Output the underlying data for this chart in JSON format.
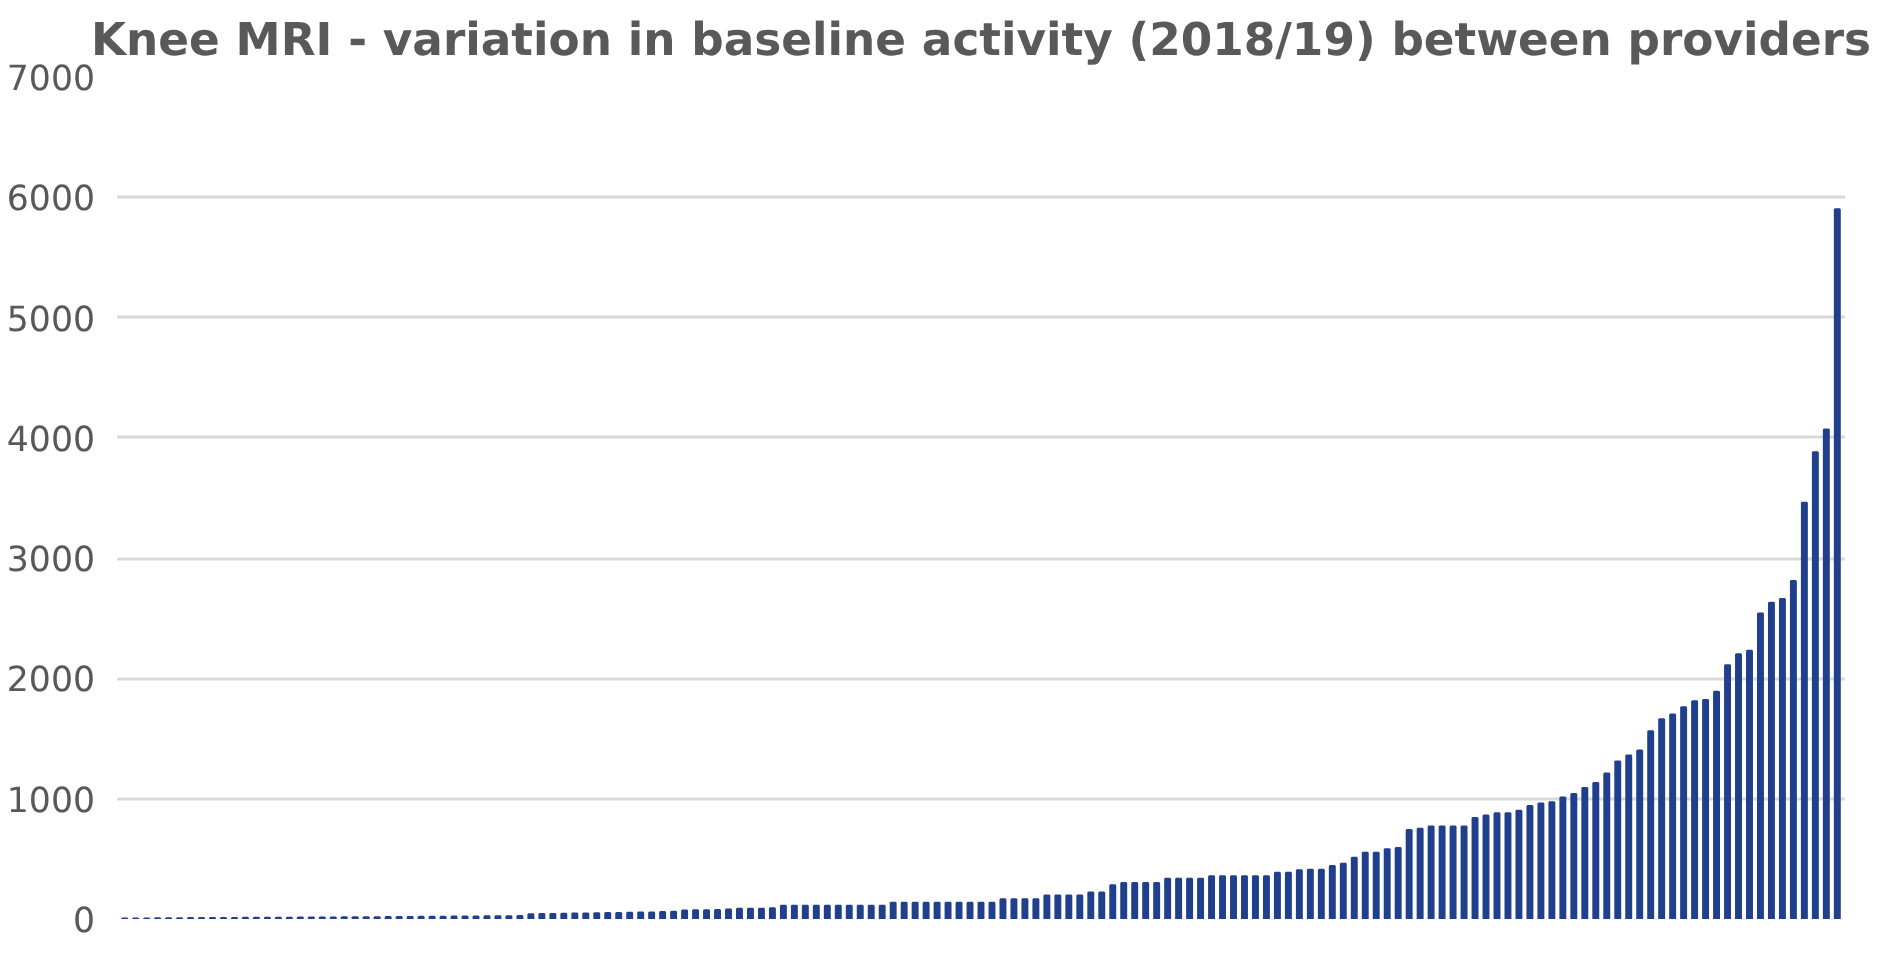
{
  "chart_data": {
    "type": "bar",
    "title": "Knee MRI - variation in baseline activity (2018/19) between providers",
    "categories": [
      null,
      null,
      null,
      null,
      null,
      null,
      null,
      null,
      null,
      null,
      null,
      null,
      null,
      null,
      null,
      null,
      null,
      null,
      null,
      null,
      null,
      null,
      null,
      null,
      null,
      null,
      null,
      null,
      null,
      null,
      null,
      null,
      null,
      null,
      null,
      null,
      null,
      null,
      null,
      null,
      null,
      null,
      null,
      null,
      null,
      null,
      null,
      null,
      null,
      null,
      null,
      null,
      null,
      null,
      null,
      null,
      null,
      null,
      null,
      null,
      null,
      null,
      null,
      null,
      null,
      null,
      null,
      null,
      null,
      null,
      null,
      null,
      null,
      null,
      null,
      null,
      null,
      null,
      null,
      null,
      null,
      null,
      null,
      null,
      null,
      null,
      null,
      null,
      null,
      null,
      null,
      null,
      null,
      null,
      null,
      null,
      null,
      null,
      null,
      null,
      null,
      null,
      null,
      null,
      null,
      null,
      null,
      null,
      null,
      null,
      null,
      null,
      null,
      null,
      null,
      null,
      null,
      null,
      null,
      null,
      null,
      null,
      null,
      null,
      null,
      null,
      null,
      null,
      null,
      null,
      null,
      null,
      null,
      null,
      null,
      null,
      null,
      null,
      null,
      null,
      null,
      null,
      null,
      null,
      null,
      null,
      null,
      null,
      null,
      null,
      null,
      null,
      null,
      null,
      null,
      null,
      null
    ],
    "values": [
      5,
      5,
      5,
      6,
      6,
      7,
      8,
      8,
      8,
      9,
      9,
      10,
      10,
      10,
      11,
      11,
      12,
      12,
      13,
      13,
      14,
      14,
      15,
      15,
      16,
      16,
      17,
      18,
      18,
      19,
      20,
      20,
      21,
      22,
      22,
      23,
      24,
      40,
      42,
      42,
      44,
      45,
      46,
      48,
      50,
      50,
      52,
      54,
      55,
      58,
      60,
      70,
      72,
      72,
      75,
      80,
      85,
      85,
      85,
      90,
      110,
      110,
      110,
      110,
      110,
      110,
      110,
      110,
      110,
      110,
      135,
      135,
      135,
      135,
      135,
      135,
      135,
      135,
      135,
      135,
      165,
      165,
      165,
      165,
      195,
      195,
      195,
      195,
      220,
      220,
      280,
      300,
      300,
      300,
      300,
      335,
      335,
      335,
      335,
      355,
      355,
      355,
      355,
      355,
      355,
      385,
      385,
      405,
      410,
      410,
      440,
      460,
      510,
      550,
      550,
      580,
      590,
      740,
      750,
      770,
      770,
      770,
      770,
      840,
      860,
      880,
      880,
      900,
      940,
      960,
      970,
      1010,
      1040,
      1090,
      1130,
      1210,
      1310,
      1360,
      1400,
      1560,
      1660,
      1700,
      1760,
      1810,
      1820,
      1890,
      2110,
      2200,
      2230,
      2540,
      2630,
      2660,
      2810,
      3460,
      3880,
      4070,
      5900
    ],
    "color": "#203f8c",
    "ylim": [
      0,
      7000
    ],
    "yticks": [
      0,
      1000,
      2000,
      3000,
      4000,
      5000,
      6000,
      7000
    ],
    "grid": "y",
    "tick_labels": "y"
  }
}
